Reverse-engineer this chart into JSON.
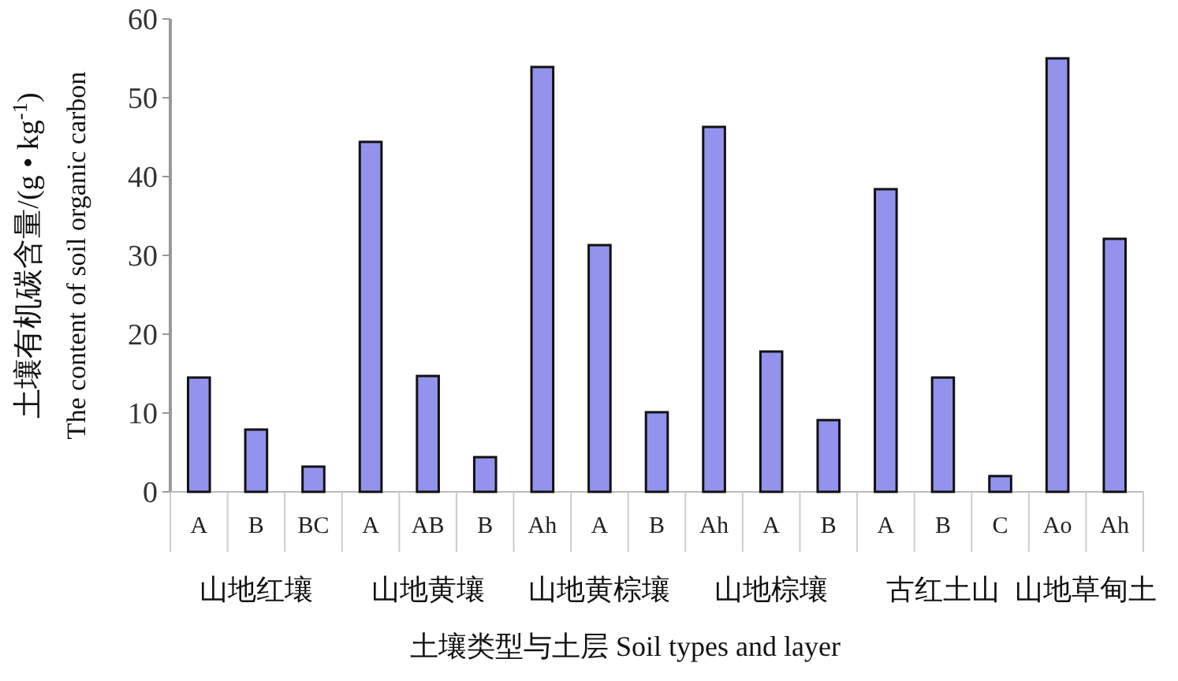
{
  "chart_data": {
    "type": "bar",
    "xlabel": "土壤类型与土层  Soil types and layer",
    "ylabel": "土壤有机碳含量/(g • kg$^{-1}$)\nThe content of soil organic carbon",
    "categories": [
      "A",
      "B",
      "BC",
      "A",
      "AB",
      "B",
      "Ah",
      "A",
      "B",
      "Ah",
      "A",
      "B",
      "A",
      "B",
      "C",
      "Ao",
      "Ah"
    ],
    "values": [
      14.5,
      7.9,
      3.2,
      44.4,
      14.7,
      4.4,
      53.9,
      31.3,
      10.1,
      46.3,
      17.8,
      9.1,
      38.4,
      14.5,
      2.0,
      55,
      32.1
    ],
    "color": "#9393ee",
    "ylim": [
      0,
      60
    ],
    "yticks": [
      0,
      10,
      20,
      30,
      40,
      50,
      60
    ],
    "annotations": [
      "山地红壤",
      "山地黄壤",
      "山地黄棕壤",
      "山地棕壤",
      "古红土山",
      "山地草甸土"
    ]
  }
}
